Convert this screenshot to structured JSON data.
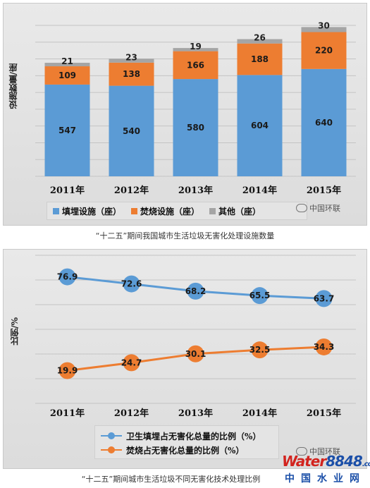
{
  "chart_data": [
    {
      "type": "bar",
      "stacked": true,
      "title": "",
      "ylabel": "设施数量/座",
      "categories": [
        "2011年",
        "2012年",
        "2013年",
        "2014年",
        "2015年"
      ],
      "series": [
        {
          "name": "填埋设施（座）",
          "values": [
            547,
            540,
            580,
            604,
            640
          ],
          "color": "#5b9bd5"
        },
        {
          "name": "焚烧设施（座）",
          "values": [
            109,
            138,
            166,
            188,
            220
          ],
          "color": "#ed7d31"
        },
        {
          "name": "其他（座）",
          "values": [
            21,
            23,
            19,
            26,
            30
          ],
          "color": "#a5a5a5"
        }
      ],
      "ylim": [
        0,
        900
      ],
      "grid": true,
      "legend": "bottom"
    },
    {
      "type": "line",
      "title": "",
      "ylabel": "比例/%",
      "categories": [
        "2011年",
        "2012年",
        "2013年",
        "2014年",
        "2015年"
      ],
      "series": [
        {
          "name": "卫生填埋占无害化总量的比例（%）",
          "values": [
            76.9,
            72.6,
            68.2,
            65.5,
            63.7
          ],
          "color": "#5b9bd5"
        },
        {
          "name": "焚烧占无害化总量的比例（%）",
          "values": [
            19.9,
            24.7,
            30.1,
            32.5,
            34.3
          ],
          "color": "#ed7d31"
        }
      ],
      "ylim": [
        0,
        90
      ],
      "grid": true,
      "legend": "bottom"
    }
  ],
  "captions": {
    "chart1": "“十二五”期间我国城市生活垃圾无害化处理设施数量",
    "chart2": "“十二五”期间城市生活垃圾不同无害化技术处理比例"
  },
  "watermark": {
    "text": "中国环联",
    "brand_red": "Water",
    "brand_blue": "8848",
    "brand_suffix": ".com",
    "brand_sub": "中国水业网"
  }
}
